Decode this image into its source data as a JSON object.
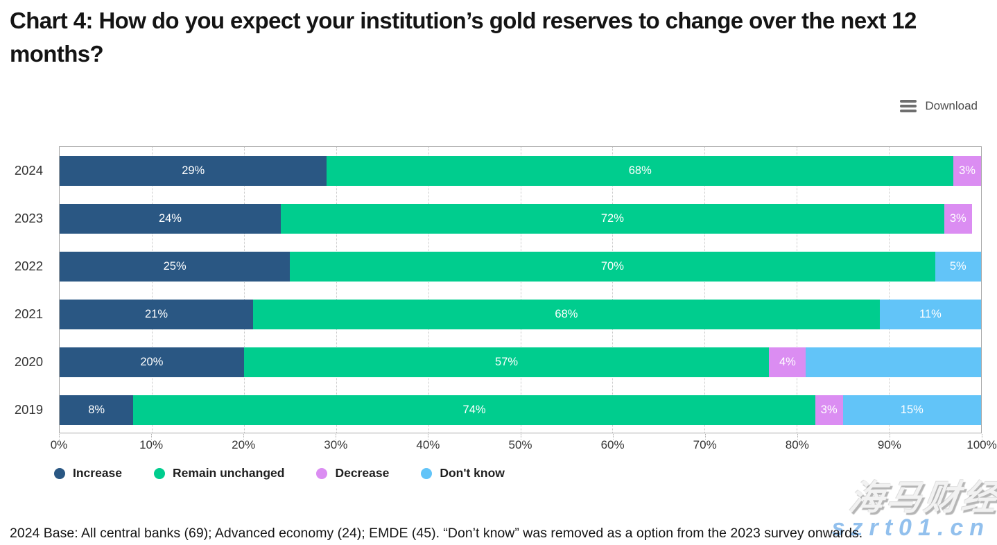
{
  "title": "Chart 4: How do you expect your institution’s gold reserves to change over the next 12 months?",
  "toolbar": {
    "download_label": "Download",
    "menu_icon": "hamburger-menu-icon"
  },
  "footer": {
    "base_note": "2024 Base: All central banks (69); Advanced economy (24); EMDE (45). “Don’t know” was removed as a option from the 2023 survey onwards."
  },
  "watermark": {
    "brand": "海马财经",
    "url": "szrt01.cn"
  },
  "chart_data": {
    "type": "bar",
    "variant": "horizontal-stacked",
    "title": "Chart 4: How do you expect your institution’s gold reserves to change over the next 12 months?",
    "categories": [
      "2024",
      "2023",
      "2022",
      "2021",
      "2020",
      "2019"
    ],
    "series": [
      {
        "name": "Increase",
        "color": "#2A5783",
        "values": [
          29,
          24,
          25,
          21,
          20,
          8
        ],
        "labels": [
          "29%",
          "24%",
          "25%",
          "21%",
          "20%",
          "8%"
        ]
      },
      {
        "name": "Remain unchanged",
        "color": "#00CD8E",
        "values": [
          68,
          72,
          70,
          68,
          57,
          74
        ],
        "labels": [
          "68%",
          "72%",
          "70%",
          "68%",
          "57%",
          "74%"
        ]
      },
      {
        "name": "Decrease",
        "color": "#DB8DF2",
        "values": [
          3,
          3,
          0,
          0,
          4,
          3
        ],
        "labels": [
          "3%",
          "3%",
          "",
          "",
          "4%",
          "3%"
        ]
      },
      {
        "name": "Don't know",
        "color": "#62C4F8",
        "values": [
          0,
          0,
          5,
          11,
          19,
          15
        ],
        "labels": [
          "",
          "",
          "5%",
          "11%",
          "",
          "15%"
        ]
      }
    ],
    "xlim": [
      0,
      100
    ],
    "x_ticks": [
      "0%",
      "10%",
      "20%",
      "30%",
      "40%",
      "50%",
      "60%",
      "70%",
      "80%",
      "90%",
      "100%"
    ],
    "grid": "vertical-dotted",
    "legend_position": "bottom-left",
    "bar_label_color": "#ffffff",
    "note": "2020 Don't know segment (19%) carries no visible data label"
  }
}
